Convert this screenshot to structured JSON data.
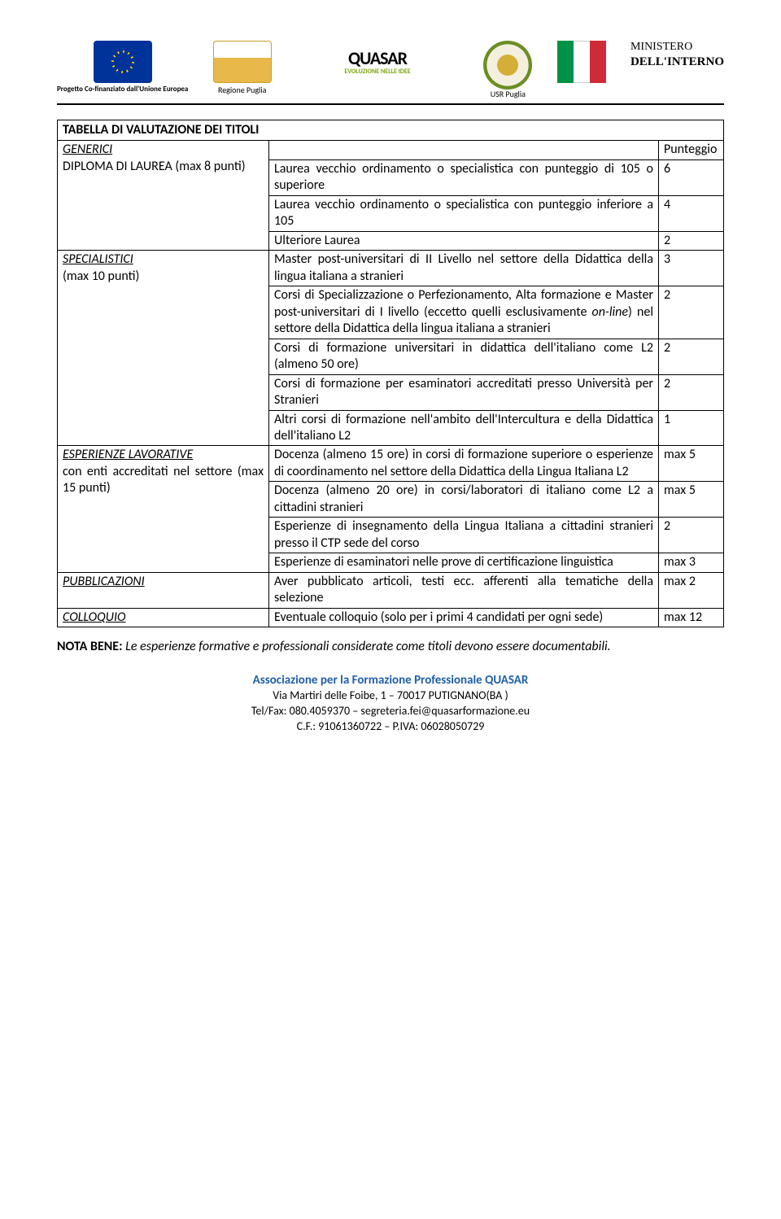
{
  "header": {
    "eu_caption": "Progetto Co-finanziato\ndall'Unione Europea",
    "puglia_caption": "Regione Puglia",
    "quasar": "QUASAR",
    "quasar_sub": "EVOLUZIONE NELLE IDEE",
    "usr_caption": "USR Puglia",
    "ministero_l1": "MINISTERO",
    "ministero_l2": "DELL'INTERNO"
  },
  "table": {
    "title": "TABELLA DI VALUTAZIONE DEI TITOLI",
    "punteggio": "Punteggio",
    "sections": [
      {
        "cat_label": "GENERICI",
        "cat_sub": "DIPLOMA DI LAUREA (max 8 punti)",
        "rows": [
          {
            "desc": "Laurea vecchio ordinamento o specialistica con punteggio di 105 o superiore",
            "pts": "6"
          },
          {
            "desc": "Laurea vecchio ordinamento o specialistica con punteggio inferiore a 105",
            "pts": "4"
          },
          {
            "desc": "Ulteriore Laurea",
            "pts": "2"
          }
        ]
      },
      {
        "cat_label": "SPECIALISTICI",
        "cat_sub": "(max 10 punti)",
        "rows": [
          {
            "desc": "Master post-universitari di II Livello nel settore della Didattica della lingua italiana a stranieri",
            "pts": "3"
          },
          {
            "desc": "Corsi di Specializzazione o Perfezionamento, Alta formazione e Master post-universitari di I livello (eccetto quelli esclusivamente <i>on-line</i>) nel settore della Didattica della lingua italiana a stranieri",
            "pts": "2"
          },
          {
            "desc": "Corsi di formazione universitari in didattica dell'italiano come L2 (almeno 50 ore)",
            "pts": "2"
          },
          {
            "desc": "Corsi di formazione per esaminatori accreditati presso Università per Stranieri",
            "pts": "2"
          },
          {
            "desc": "Altri corsi di formazione nell'ambito dell'Intercultura e della Didattica dell'italiano L2",
            "pts": "1"
          }
        ]
      },
      {
        "cat_label": "ESPERIENZE LAVORATIVE",
        "cat_sub": "con enti accreditati nel settore (max 15 punti)",
        "rows": [
          {
            "desc": "Docenza (almeno 15 ore) in corsi di formazione superiore o esperienze di coordinamento nel settore della Didattica della Lingua Italiana L2",
            "pts": "max 5"
          },
          {
            "desc": "Docenza (almeno 20 ore) in corsi/laboratori di italiano come L2 a cittadini stranieri",
            "pts": "max 5"
          },
          {
            "desc": "Esperienze di insegnamento della Lingua Italiana a cittadini stranieri presso il CTP sede del corso",
            "pts": "2"
          },
          {
            "desc": "Esperienze di esaminatori nelle prove di certificazione linguistica",
            "pts": "max 3"
          }
        ]
      },
      {
        "cat_label": "PUBBLICAZIONI",
        "cat_sub": "",
        "rows": [
          {
            "desc": "Aver pubblicato articoli, testi ecc. afferenti alla tematiche della selezione",
            "pts": "max 2"
          }
        ]
      },
      {
        "cat_label": "COLLOQUIO",
        "cat_sub": "",
        "rows": [
          {
            "desc": "Eventuale colloquio (solo per i primi 4 candidati per ogni sede)",
            "pts": "max 12"
          }
        ]
      }
    ]
  },
  "nota": {
    "label": "NOTA BENE:",
    "text": "Le esperienze formative e professionali considerate come titoli devono essere documentabili."
  },
  "footer": {
    "assoc": "Associazione per la Formazione Professionale QUASAR",
    "addr": "Via Martiri delle Foibe, 1 – 70017 PUTIGNANO(BA )",
    "tel": "Tel/Fax: 080.4059370 – segreteria.fei@quasarformazione.eu",
    "cf": "C.F.: 91061360722 – P.IVA: 06028050729"
  }
}
